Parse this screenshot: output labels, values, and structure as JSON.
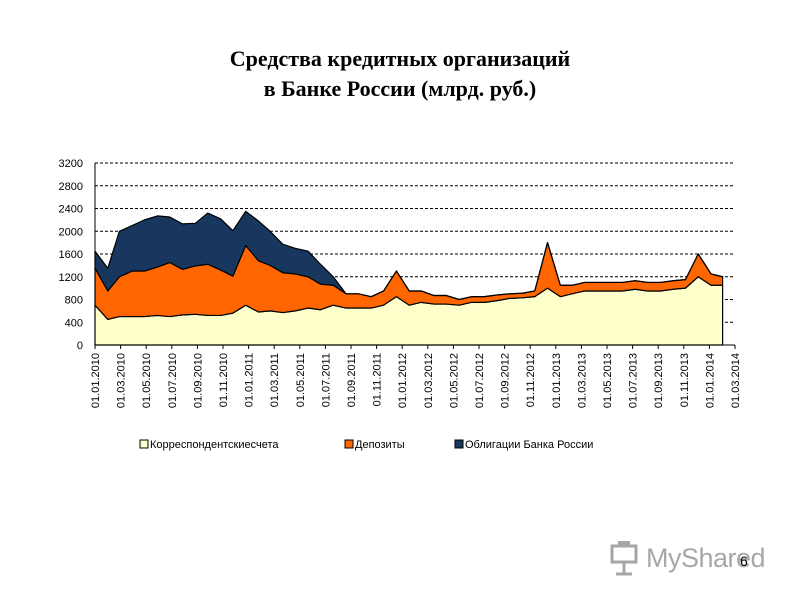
{
  "title_line1": "Средства кредитных организаций",
  "title_line2": "в Банке России (млрд. руб.)",
  "page_number": "6",
  "watermark": "MyShared",
  "colors": {
    "correspondent": "#ffffcc",
    "deposits": "#ff6600",
    "bonds": "#17375e",
    "outline": "#000000"
  },
  "chart_data": {
    "type": "area",
    "stacked": true,
    "ylim": [
      0,
      3200
    ],
    "yticks": [
      0,
      400,
      800,
      1200,
      1600,
      2000,
      2400,
      2800,
      3200
    ],
    "grid": "horizontal-dashed",
    "legend_position": "bottom",
    "xstart": "2010-01-01",
    "xend": "2014-03-31",
    "xticklabels": [
      "01.01.2010",
      "01.03.2010",
      "01.05.2010",
      "01.07.2010",
      "01.09.2010",
      "01.11.2010",
      "01.01.2011",
      "01.03.2011",
      "01.05.2011",
      "01.07.2011",
      "01.09.2011",
      "01.11.2011",
      "01.01.2012",
      "01.03.2012",
      "01.05.2012",
      "01.07.2012",
      "01.09.2012",
      "01.11.2012",
      "01.01.2013",
      "01.03.2013",
      "01.05.2013",
      "01.07.2013",
      "01.09.2013",
      "01.11.2013",
      "01.01.2014",
      "01.03.2014"
    ],
    "x": [
      "2010-01-01",
      "2010-02-01",
      "2010-03-01",
      "2010-04-01",
      "2010-05-01",
      "2010-06-01",
      "2010-07-01",
      "2010-08-01",
      "2010-09-01",
      "2010-10-01",
      "2010-11-01",
      "2010-12-01",
      "2011-01-01",
      "2011-02-01",
      "2011-03-01",
      "2011-04-01",
      "2011-05-01",
      "2011-06-01",
      "2011-07-01",
      "2011-08-01",
      "2011-09-01",
      "2011-10-01",
      "2011-11-01",
      "2011-12-01",
      "2012-01-01",
      "2012-02-01",
      "2012-03-01",
      "2012-04-01",
      "2012-05-01",
      "2012-06-01",
      "2012-07-01",
      "2012-08-01",
      "2012-09-01",
      "2012-10-01",
      "2012-11-01",
      "2012-12-01",
      "2013-01-01",
      "2013-02-01",
      "2013-03-01",
      "2013-04-01",
      "2013-05-01",
      "2013-06-01",
      "2013-07-01",
      "2013-08-01",
      "2013-09-01",
      "2013-10-01",
      "2013-11-01",
      "2013-12-01",
      "2014-01-01",
      "2014-02-01",
      "2014-03-01"
    ],
    "series": [
      {
        "name": "Корреспондентскиесчета",
        "values": [
          700,
          450,
          500,
          500,
          500,
          520,
          500,
          530,
          540,
          520,
          520,
          560,
          700,
          580,
          600,
          570,
          600,
          650,
          620,
          700,
          650,
          650,
          650,
          700,
          850,
          700,
          750,
          720,
          720,
          700,
          750,
          750,
          780,
          820,
          830,
          850,
          1000,
          850,
          900,
          950,
          950,
          950,
          950,
          980,
          950,
          950,
          980,
          1000,
          1200,
          1050,
          1050
        ]
      },
      {
        "name": "Депозиты",
        "values": [
          650,
          500,
          700,
          800,
          800,
          850,
          950,
          800,
          850,
          900,
          800,
          650,
          1050,
          900,
          800,
          700,
          650,
          550,
          450,
          350,
          250,
          250,
          200,
          250,
          450,
          250,
          200,
          150,
          150,
          100,
          100,
          100,
          100,
          80,
          80,
          100,
          800,
          200,
          150,
          150,
          150,
          150,
          150,
          150,
          150,
          150,
          150,
          150,
          400,
          200,
          150
        ]
      },
      {
        "name": "Облигации Банка России",
        "values": [
          300,
          400,
          800,
          800,
          900,
          900,
          800,
          800,
          750,
          900,
          900,
          800,
          600,
          700,
          600,
          500,
          450,
          450,
          350,
          150,
          0,
          0,
          0,
          0,
          0,
          0,
          0,
          0,
          0,
          0,
          0,
          0,
          0,
          0,
          0,
          0,
          0,
          0,
          0,
          0,
          0,
          0,
          0,
          0,
          0,
          0,
          0,
          0,
          0,
          0,
          0
        ]
      }
    ]
  }
}
